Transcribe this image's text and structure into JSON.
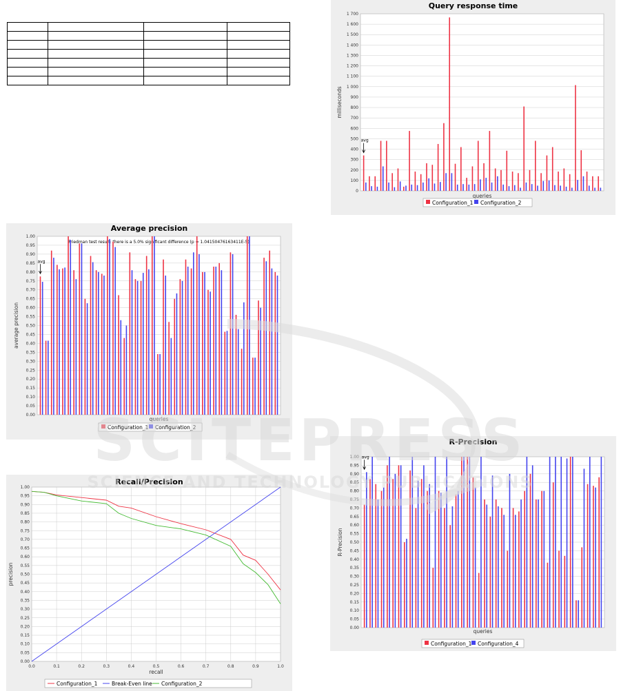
{
  "table": {
    "rows": 7,
    "cols": 4
  },
  "watermark": {
    "main": "SCITEPRESS",
    "sub": "SCIENCE AND TECHNOLOGY PUBLICATIONS"
  },
  "chart_data": [
    {
      "id": "qrt",
      "type": "bar",
      "title": "Query response time",
      "xlabel": "queries",
      "ylabel": "milliseconds",
      "ylim": [
        0,
        1700
      ],
      "yticks": [
        0,
        100,
        200,
        300,
        400,
        500,
        600,
        700,
        800,
        900,
        1000,
        1100,
        1200,
        1300,
        1400,
        1500,
        1600,
        1700
      ],
      "ytick_labels": [
        "0",
        "100",
        "200",
        "300",
        "400",
        "500",
        "600",
        "700",
        "800",
        "900",
        "1 000",
        "1 100",
        "1 200",
        "1 300",
        "1 400",
        "1 500",
        "1 600",
        "1 700"
      ],
      "annotation": "avg",
      "grid": true,
      "legend": "bottom",
      "series": [
        {
          "name": "Configuration_1",
          "color": "#ee3344",
          "values": [
            340,
            140,
            140,
            480,
            480,
            170,
            215,
            40,
            575,
            185,
            160,
            265,
            250,
            450,
            650,
            1665,
            260,
            420,
            125,
            235,
            480,
            265,
            575,
            215,
            200,
            385,
            185,
            170,
            810,
            200,
            480,
            170,
            340,
            420,
            185,
            215,
            160,
            1015,
            390,
            185,
            140,
            140
          ]
        },
        {
          "name": "Configuration_2",
          "color": "#4444ee",
          "values": [
            80,
            45,
            40,
            235,
            80,
            35,
            90,
            50,
            60,
            55,
            80,
            120,
            70,
            85,
            170,
            170,
            60,
            65,
            60,
            65,
            110,
            125,
            80,
            140,
            60,
            45,
            55,
            30,
            80,
            65,
            50,
            95,
            100,
            55,
            50,
            40,
            30,
            105,
            140,
            50,
            30,
            30
          ]
        }
      ]
    },
    {
      "id": "ap",
      "type": "bar",
      "title": "Average precision",
      "subtitle": "Friedman test result: there is a 5.0% significant difference (p = 1.04150476163411E-5)",
      "xlabel": "queries",
      "ylabel": "average precision",
      "ylim": [
        0,
        1.0
      ],
      "yticks": [
        0,
        0.05,
        0.1,
        0.15,
        0.2,
        0.25,
        0.3,
        0.35,
        0.4,
        0.45,
        0.5,
        0.55,
        0.6,
        0.65,
        0.7,
        0.75,
        0.8,
        0.85,
        0.9,
        0.95,
        1.0
      ],
      "ytick_labels": [
        "0.00",
        "0.05",
        "0.10",
        "0.15",
        "0.20",
        "0.25",
        "0.30",
        "0.35",
        "0.40",
        "0.45",
        "0.50",
        "0.55",
        "0.60",
        "0.65",
        "0.70",
        "0.75",
        "0.80",
        "0.85",
        "0.90",
        "0.95",
        "1.00"
      ],
      "annotation": "avg",
      "grid": true,
      "legend": "bottom",
      "series": [
        {
          "name": "Configuration_1",
          "color": "#ee3344",
          "values": [
            0.775,
            0.415,
            0.92,
            0.84,
            0.82,
            1.0,
            0.81,
            0.96,
            0.65,
            0.89,
            0.81,
            0.79,
            1.0,
            0.97,
            0.67,
            0.43,
            0.91,
            0.76,
            0.75,
            0.89,
            1.0,
            0.34,
            0.87,
            0.52,
            0.65,
            0.76,
            0.87,
            0.82,
            1.0,
            0.8,
            0.7,
            0.83,
            0.85,
            0.465,
            0.91,
            0.56,
            0.37,
            1.0,
            0.32,
            0.64,
            0.88,
            0.92,
            0.8
          ]
        },
        {
          "name": "Configuration_2",
          "color": "#4444ee",
          "values": [
            0.745,
            0.415,
            0.88,
            0.815,
            0.825,
            0.98,
            0.76,
            0.96,
            0.625,
            0.855,
            0.8,
            0.78,
            0.985,
            0.94,
            0.53,
            0.5,
            0.81,
            0.75,
            0.795,
            0.815,
            1.0,
            0.34,
            0.78,
            0.43,
            0.68,
            0.75,
            0.83,
            0.91,
            0.9,
            0.8,
            0.69,
            0.83,
            0.81,
            0.47,
            0.9,
            0.48,
            0.63,
            1.0,
            0.32,
            0.6,
            0.86,
            0.82,
            0.78
          ]
        }
      ]
    },
    {
      "id": "rp",
      "type": "line",
      "title": "Recall/Precision",
      "xlabel": "recall",
      "ylabel": "precision",
      "xlim": [
        0,
        1.0
      ],
      "ylim": [
        0,
        1.0
      ],
      "xticks": [
        0,
        0.1,
        0.2,
        0.3,
        0.4,
        0.5,
        0.6,
        0.7,
        0.8,
        0.9,
        1.0
      ],
      "xtick_labels": [
        "0.0",
        "0.1",
        "0.2",
        "0.3",
        "0.4",
        "0.5",
        "0.6",
        "0.7",
        "0.8",
        "0.9",
        "1.0"
      ],
      "yticks": [
        0,
        0.05,
        0.1,
        0.15,
        0.2,
        0.25,
        0.3,
        0.35,
        0.4,
        0.45,
        0.5,
        0.55,
        0.6,
        0.65,
        0.7,
        0.75,
        0.8,
        0.85,
        0.9,
        0.95,
        1.0
      ],
      "ytick_labels": [
        "0.00",
        "0.05",
        "0.10",
        "0.15",
        "0.20",
        "0.25",
        "0.30",
        "0.35",
        "0.40",
        "0.45",
        "0.50",
        "0.55",
        "0.60",
        "0.65",
        "0.70",
        "0.75",
        "0.80",
        "0.85",
        "0.90",
        "0.95",
        "1.00"
      ],
      "grid": true,
      "legend": "bottom",
      "series": [
        {
          "name": "Configuration_1",
          "color": "#ee3344",
          "x": [
            0,
            0.05,
            0.1,
            0.2,
            0.3,
            0.35,
            0.4,
            0.5,
            0.6,
            0.7,
            0.8,
            0.85,
            0.9,
            0.95,
            1.0
          ],
          "y": [
            0.975,
            0.97,
            0.955,
            0.94,
            0.925,
            0.89,
            0.88,
            0.83,
            0.79,
            0.755,
            0.7,
            0.61,
            0.58,
            0.5,
            0.41
          ]
        },
        {
          "name": "Break-Even line",
          "color": "#4444ee",
          "x": [
            0,
            1.0
          ],
          "y": [
            0,
            1.0
          ]
        },
        {
          "name": "Configuration_2",
          "color": "#44bb33",
          "x": [
            0,
            0.05,
            0.1,
            0.2,
            0.3,
            0.35,
            0.4,
            0.5,
            0.6,
            0.7,
            0.8,
            0.85,
            0.9,
            0.95,
            1.0
          ],
          "y": [
            0.975,
            0.97,
            0.95,
            0.92,
            0.905,
            0.85,
            0.82,
            0.78,
            0.76,
            0.725,
            0.66,
            0.56,
            0.51,
            0.44,
            0.33
          ]
        }
      ]
    },
    {
      "id": "rprec",
      "type": "bar",
      "title": "R-Precision",
      "xlabel": "queries",
      "ylabel": "R-Precision",
      "ylim": [
        0,
        1.0
      ],
      "yticks": [
        0,
        0.05,
        0.1,
        0.15,
        0.2,
        0.25,
        0.3,
        0.35,
        0.4,
        0.45,
        0.5,
        0.55,
        0.6,
        0.65,
        0.7,
        0.75,
        0.8,
        0.85,
        0.9,
        0.95,
        1.0
      ],
      "ytick_labels": [
        "0.00",
        "0.05",
        "0.10",
        "0.15",
        "0.20",
        "0.25",
        "0.30",
        "0.35",
        "0.40",
        "0.45",
        "0.50",
        "0.55",
        "0.60",
        "0.65",
        "0.70",
        "0.75",
        "0.80",
        "0.85",
        "0.90",
        "0.95",
        "1.00"
      ],
      "annotation": "avg",
      "grid": true,
      "legend": "bottom",
      "series": [
        {
          "name": "Configuration_1",
          "color": "#ee3344",
          "values": [
            0.72,
            0.87,
            0.84,
            0.8,
            0.95,
            0.87,
            0.95,
            0.5,
            0.92,
            0.7,
            0.87,
            0.8,
            0.35,
            0.8,
            0.7,
            0.6,
            0.78,
            1.0,
            1.0,
            0.88,
            0.32,
            0.75,
            0.65,
            0.75,
            0.7,
            0.45,
            0.7,
            0.68,
            0.8,
            0.9,
            0.75,
            0.8,
            0.38,
            0.85,
            0.45,
            0.42,
            1.0,
            0.16,
            0.47,
            0.84,
            0.83,
            0.88
          ]
        },
        {
          "name": "Configuration_4",
          "color": "#4444ee",
          "values": [
            0.91,
            1.0,
            0.75,
            0.82,
            1.0,
            0.9,
            0.95,
            0.52,
            1.0,
            0.86,
            0.95,
            0.84,
            1.0,
            0.79,
            1.0,
            0.71,
            0.8,
            1.0,
            1.0,
            0.82,
            1.0,
            0.72,
            0.89,
            0.71,
            0.66,
            0.9,
            0.66,
            0.75,
            1.0,
            0.95,
            0.75,
            0.8,
            1.0,
            1.0,
            1.0,
            0.99,
            1.0,
            0.16,
            0.93,
            1.0,
            0.82,
            1.0
          ]
        }
      ]
    }
  ]
}
